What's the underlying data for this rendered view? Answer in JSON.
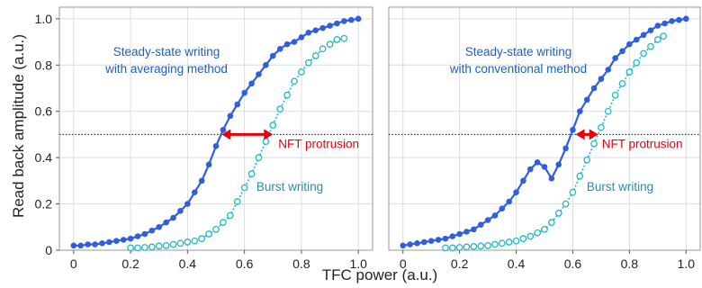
{
  "colors": {
    "steady": "#2f5fe0",
    "burst": "#1fb8c8",
    "arrow": "#e8000b",
    "steady_text": "#1f5fbf",
    "burst_text": "#2a8fa0",
    "grid": "#dcdcdc"
  },
  "chart_data": [
    {
      "type": "line",
      "xlabel": "TFC power (a.u.)",
      "ylabel": "Read back amplitude (a.u.)",
      "xlim": [
        -0.05,
        1.05
      ],
      "ylim": [
        0,
        1.05
      ],
      "xticks": [
        0,
        0.2,
        0.4,
        0.6,
        0.8,
        1.0
      ],
      "yticks": [
        0,
        0.2,
        0.4,
        0.6,
        0.8,
        1.0
      ],
      "xtick_labels": [
        "0",
        "0.2",
        "0.4",
        "0.6",
        "0.8",
        "1.0"
      ],
      "ytick_labels": [
        "0",
        "0.2",
        "0.4",
        "0.6",
        "0.8",
        "1.0"
      ],
      "grid": true,
      "threshold": 0.5,
      "series": [
        {
          "style": "solid-filled-circles",
          "x": [
            0,
            0.025,
            0.05,
            0.075,
            0.1,
            0.125,
            0.15,
            0.175,
            0.2,
            0.225,
            0.25,
            0.275,
            0.3,
            0.325,
            0.35,
            0.375,
            0.4,
            0.425,
            0.45,
            0.475,
            0.5,
            0.525,
            0.55,
            0.575,
            0.6,
            0.625,
            0.65,
            0.675,
            0.7,
            0.725,
            0.75,
            0.775,
            0.8,
            0.825,
            0.85,
            0.875,
            0.9,
            0.925,
            0.95,
            0.975,
            1.0
          ],
          "y": [
            0.02,
            0.02,
            0.025,
            0.025,
            0.03,
            0.035,
            0.04,
            0.045,
            0.05,
            0.06,
            0.07,
            0.085,
            0.1,
            0.12,
            0.14,
            0.17,
            0.2,
            0.25,
            0.3,
            0.37,
            0.45,
            0.52,
            0.58,
            0.63,
            0.68,
            0.72,
            0.76,
            0.8,
            0.84,
            0.87,
            0.89,
            0.9,
            0.92,
            0.94,
            0.95,
            0.96,
            0.97,
            0.98,
            0.99,
            0.995,
            1.0
          ]
        },
        {
          "style": "dotted-open-circles",
          "x": [
            0.2,
            0.225,
            0.25,
            0.275,
            0.3,
            0.325,
            0.35,
            0.375,
            0.4,
            0.425,
            0.45,
            0.475,
            0.5,
            0.525,
            0.55,
            0.575,
            0.6,
            0.625,
            0.65,
            0.675,
            0.7,
            0.725,
            0.75,
            0.775,
            0.8,
            0.825,
            0.85,
            0.875,
            0.9,
            0.925,
            0.95
          ],
          "y": [
            0.01,
            0.01,
            0.012,
            0.014,
            0.018,
            0.02,
            0.025,
            0.03,
            0.035,
            0.04,
            0.05,
            0.07,
            0.09,
            0.12,
            0.15,
            0.21,
            0.27,
            0.33,
            0.4,
            0.47,
            0.54,
            0.61,
            0.67,
            0.73,
            0.77,
            0.81,
            0.84,
            0.87,
            0.89,
            0.91,
            0.915
          ]
        }
      ],
      "annotations": {
        "steady_label": [
          "Steady-state writing",
          "with averaging method"
        ],
        "burst_label": "Burst writing",
        "arrow_label": "NFT protrusion",
        "arrow_from": 0.52,
        "arrow_to": 0.7
      }
    },
    {
      "type": "line",
      "xlabel": "TFC power (a.u.)",
      "xlim": [
        -0.05,
        1.05
      ],
      "ylim": [
        0,
        1.05
      ],
      "xticks": [
        0,
        0.2,
        0.4,
        0.6,
        0.8,
        1.0
      ],
      "xtick_labels": [
        "0",
        "0.2",
        "0.4",
        "0.6",
        "0.8",
        "1.0"
      ],
      "grid": true,
      "threshold": 0.5,
      "series": [
        {
          "style": "solid-filled-circles",
          "x": [
            0,
            0.025,
            0.05,
            0.075,
            0.1,
            0.125,
            0.15,
            0.175,
            0.2,
            0.225,
            0.25,
            0.275,
            0.3,
            0.325,
            0.35,
            0.375,
            0.4,
            0.425,
            0.45,
            0.475,
            0.5,
            0.525,
            0.55,
            0.575,
            0.6,
            0.625,
            0.65,
            0.675,
            0.7,
            0.725,
            0.75,
            0.775,
            0.8,
            0.825,
            0.85,
            0.875,
            0.9,
            0.925,
            0.95,
            0.975,
            1.0
          ],
          "y": [
            0.02,
            0.025,
            0.03,
            0.035,
            0.04,
            0.045,
            0.05,
            0.06,
            0.07,
            0.08,
            0.09,
            0.11,
            0.13,
            0.15,
            0.18,
            0.21,
            0.25,
            0.3,
            0.35,
            0.38,
            0.36,
            0.31,
            0.37,
            0.44,
            0.52,
            0.6,
            0.65,
            0.7,
            0.74,
            0.78,
            0.83,
            0.86,
            0.89,
            0.91,
            0.93,
            0.95,
            0.97,
            0.98,
            0.99,
            0.995,
            1.0
          ]
        },
        {
          "style": "dotted-open-circles",
          "x": [
            0.15,
            0.175,
            0.2,
            0.225,
            0.25,
            0.275,
            0.3,
            0.325,
            0.35,
            0.375,
            0.4,
            0.425,
            0.45,
            0.475,
            0.5,
            0.525,
            0.55,
            0.575,
            0.6,
            0.625,
            0.65,
            0.675,
            0.7,
            0.725,
            0.75,
            0.775,
            0.8,
            0.825,
            0.85,
            0.875,
            0.9,
            0.92
          ],
          "y": [
            0.01,
            0.01,
            0.012,
            0.014,
            0.016,
            0.018,
            0.02,
            0.025,
            0.03,
            0.035,
            0.04,
            0.05,
            0.06,
            0.075,
            0.09,
            0.12,
            0.16,
            0.2,
            0.25,
            0.32,
            0.39,
            0.46,
            0.53,
            0.6,
            0.67,
            0.72,
            0.77,
            0.81,
            0.85,
            0.88,
            0.91,
            0.925
          ]
        }
      ],
      "annotations": {
        "steady_label": [
          "Steady-state writing",
          "with conventional method"
        ],
        "burst_label": "Burst writing",
        "arrow_label": "NFT protrusion",
        "arrow_from": 0.61,
        "arrow_to": 0.69
      }
    }
  ]
}
